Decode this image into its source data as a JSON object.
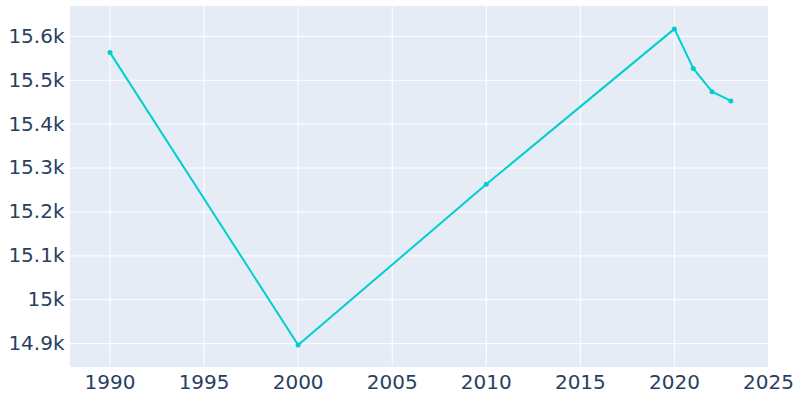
{
  "chart_data": {
    "type": "line",
    "x": [
      1990,
      2000,
      2010,
      2020,
      2021,
      2022,
      2023
    ],
    "values": [
      15563,
      14897,
      15263,
      15617,
      15527,
      15474,
      15453
    ],
    "color": "#00ced1",
    "marker": "circle",
    "xlim": [
      1987.9,
      2025
    ],
    "xticks": [
      1990,
      1995,
      2000,
      2005,
      2010,
      2015,
      2020,
      2025
    ],
    "ylim": [
      14848,
      15668
    ],
    "yticks": [
      {
        "value": 14900,
        "label": "14.9k"
      },
      {
        "value": 15000,
        "label": "15k"
      },
      {
        "value": 15100,
        "label": "15.1k"
      },
      {
        "value": 15200,
        "label": "15.2k"
      },
      {
        "value": 15300,
        "label": "15.3k"
      },
      {
        "value": 15400,
        "label": "15.4k"
      },
      {
        "value": 15500,
        "label": "15.5k"
      },
      {
        "value": 15600,
        "label": "15.6k"
      }
    ],
    "grid": true
  }
}
